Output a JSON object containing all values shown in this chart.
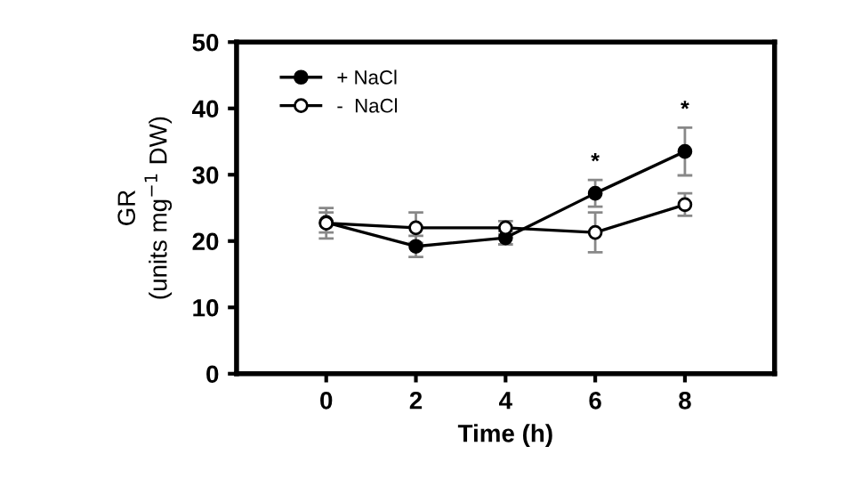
{
  "chart_data": {
    "type": "line",
    "xlabel": "Time (h)",
    "ylabel": "GR\n(units mg$^{−1}$ DW)",
    "x": [
      0,
      2,
      4,
      6,
      8
    ],
    "series": [
      {
        "name": "+ NaCl",
        "color": "#000000",
        "marker": "circle",
        "values": [
          22.8,
          19.2,
          20.5,
          27.2,
          33.5
        ],
        "errors": [
          1.5,
          1.6,
          1.0,
          2.0,
          3.6
        ]
      },
      {
        "name": "-  NaCl",
        "color": "#000000",
        "marker": "circle",
        "values": [
          22.7,
          22.0,
          22.0,
          21.3,
          25.5
        ],
        "errors": [
          2.3,
          2.3,
          1.0,
          3.0,
          1.7
        ]
      }
    ],
    "annotations": [
      {
        "text": "*",
        "x": 6,
        "y": 27.2
      },
      {
        "text": "*",
        "x": 8,
        "y": 33.5
      }
    ],
    "xlim": [
      -2,
      10
    ],
    "xticks": [
      0,
      2,
      4,
      6,
      8
    ],
    "ylim": [
      0,
      50
    ],
    "yticks": [
      0,
      10,
      20,
      30,
      40,
      50
    ],
    "legend": "top left",
    "grid": false,
    "line_style": "solid"
  }
}
